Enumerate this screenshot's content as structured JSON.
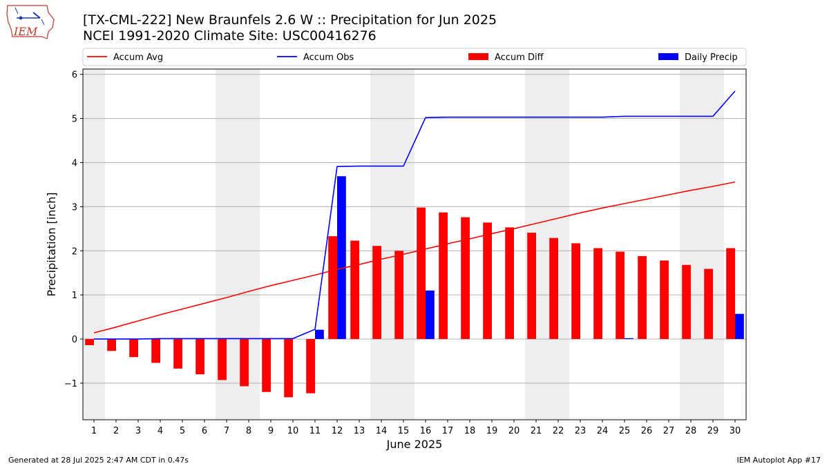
{
  "header": {
    "title_line1": "[TX-CML-222] New Braunfels 2.6 W :: Precipitation for Jun 2025",
    "title_line2": "NCEI 1991-2020 Climate Site: USC00416276",
    "logo_text": "IEM"
  },
  "footer": {
    "generated": "Generated at 28 Jul 2025 2:47 AM CDT in 0.47s",
    "app": "IEM Autoplot App #17"
  },
  "colors": {
    "accum_avg": "#ff0000",
    "accum_obs": "#0000ff",
    "accum_diff": "#ff0000",
    "daily_precip": "#0000ff",
    "weekend_shade": "#eeeeee",
    "grid": "#b0b0b0"
  },
  "chart_data": {
    "type": "bar",
    "xlabel": "June 2025",
    "ylabel": "Precipitation [inch]",
    "ylim": [
      -1.83,
      6.12
    ],
    "xlim": [
      0.5,
      30.5
    ],
    "yticks": [
      -1,
      0,
      1,
      2,
      3,
      4,
      5,
      6
    ],
    "ytick_labels": [
      "−1",
      "0",
      "1",
      "2",
      "3",
      "4",
      "5",
      "6"
    ],
    "categories": [
      "1",
      "2",
      "3",
      "4",
      "5",
      "6",
      "7",
      "8",
      "9",
      "10",
      "11",
      "12",
      "13",
      "14",
      "15",
      "16",
      "17",
      "18",
      "19",
      "20",
      "21",
      "22",
      "23",
      "24",
      "25",
      "26",
      "27",
      "28",
      "29",
      "30"
    ],
    "grid": "horizontal",
    "legend_position": "top",
    "shaded_days": [
      1,
      7,
      8,
      14,
      15,
      21,
      22,
      28,
      29
    ],
    "series": [
      {
        "name": "Accum Avg",
        "kind": "line",
        "values": [
          0.14,
          0.27,
          0.41,
          0.55,
          0.68,
          0.81,
          0.94,
          1.08,
          1.21,
          1.33,
          1.45,
          1.58,
          1.69,
          1.81,
          1.92,
          2.04,
          2.16,
          2.27,
          2.39,
          2.5,
          2.62,
          2.74,
          2.86,
          2.97,
          3.07,
          3.17,
          3.27,
          3.37,
          3.46,
          3.56
        ]
      },
      {
        "name": "Accum Obs",
        "kind": "line",
        "values": [
          0.0,
          0.0,
          0.0,
          0.01,
          0.01,
          0.01,
          0.01,
          0.01,
          0.01,
          0.01,
          0.22,
          3.91,
          3.92,
          3.92,
          3.92,
          5.02,
          5.03,
          5.03,
          5.03,
          5.03,
          5.03,
          5.03,
          5.03,
          5.03,
          5.05,
          5.05,
          5.05,
          5.05,
          5.05,
          5.62
        ]
      },
      {
        "name": "Accum Diff",
        "kind": "bar",
        "values": [
          -0.14,
          -0.27,
          -0.41,
          -0.54,
          -0.67,
          -0.8,
          -0.93,
          -1.07,
          -1.2,
          -1.32,
          -1.23,
          2.33,
          2.23,
          2.11,
          2.0,
          2.98,
          2.87,
          2.76,
          2.64,
          2.53,
          2.41,
          2.29,
          2.17,
          2.06,
          1.98,
          1.88,
          1.78,
          1.68,
          1.59,
          2.06
        ]
      },
      {
        "name": "Daily Precip",
        "kind": "bar",
        "values": [
          0.0,
          0.0,
          0.0,
          0.0,
          0.0,
          0.0,
          0.0,
          0.0,
          0.0,
          0.0,
          0.21,
          3.69,
          0.0,
          0.0,
          0.0,
          1.1,
          0.0,
          0.0,
          0.0,
          0.0,
          0.0,
          0.0,
          0.0,
          0.0,
          0.02,
          0.0,
          0.0,
          0.0,
          0.0,
          0.57
        ]
      }
    ]
  }
}
